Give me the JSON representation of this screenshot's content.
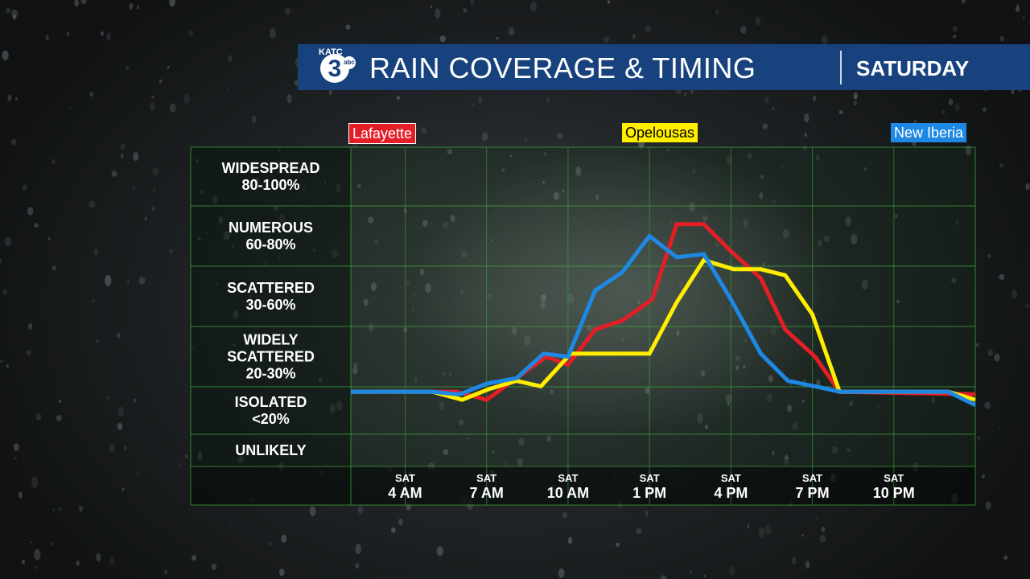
{
  "banner": {
    "logo_text": "KATC",
    "logo_number": "3",
    "logo_network": "abc",
    "title": "RAIN COVERAGE & TIMING",
    "day": "SATURDAY"
  },
  "locations": [
    "Lafayette",
    "Opelousas",
    "New Iberia"
  ],
  "colors": {
    "Lafayette": "#e41e26",
    "Opelousas": "#ffee00",
    "New Iberia": "#1e88e5",
    "banner": "#17427e",
    "grid": "#3fae3f"
  },
  "chart_data": {
    "type": "line",
    "categories": [
      {
        "label": "WIDESPREAD",
        "range": "80-100%"
      },
      {
        "label": "NUMEROUS",
        "range": "60-80%"
      },
      {
        "label": "SCATTERED",
        "range": "30-60%"
      },
      {
        "label": "WIDELY SCATTERED",
        "range": "20-30%"
      },
      {
        "label": "ISOLATED",
        "range": "<20%"
      },
      {
        "label": "UNLIKELY",
        "range": ""
      }
    ],
    "y_levels": [
      "Unlikely",
      "Isolated",
      "Widely Scattered",
      "Scattered",
      "Numerous",
      "Widespread"
    ],
    "y_range": [
      0,
      6
    ],
    "x_ticks": [
      {
        "day": "SAT",
        "time": "4 AM",
        "hour": 4
      },
      {
        "day": "SAT",
        "time": "7 AM",
        "hour": 7
      },
      {
        "day": "SAT",
        "time": "10 AM",
        "hour": 10
      },
      {
        "day": "SAT",
        "time": "1 PM",
        "hour": 13
      },
      {
        "day": "SAT",
        "time": "4 PM",
        "hour": 16
      },
      {
        "day": "SAT",
        "time": "7 PM",
        "hour": 19
      },
      {
        "day": "SAT",
        "time": "10 PM",
        "hour": 22
      }
    ],
    "x_range": [
      2,
      25
    ],
    "grid": true,
    "legend": "top",
    "series": [
      {
        "name": "Lafayette",
        "color": "#e41e26",
        "points": [
          [
            2,
            1.35
          ],
          [
            5,
            1.35
          ],
          [
            5.9,
            1.35
          ],
          [
            7,
            1.2
          ],
          [
            8.1,
            1.6
          ],
          [
            9.2,
            2.0
          ],
          [
            10,
            1.85
          ],
          [
            11,
            2.45
          ],
          [
            12,
            2.6
          ],
          [
            13.1,
            2.95
          ],
          [
            14,
            4.2
          ],
          [
            15,
            4.2
          ],
          [
            16,
            3.75
          ],
          [
            17.1,
            3.3
          ],
          [
            18,
            2.45
          ],
          [
            19.1,
            2.0
          ],
          [
            20,
            1.35
          ],
          [
            25,
            1.3
          ]
        ]
      },
      {
        "name": "Opelousas",
        "color": "#ffee00",
        "points": [
          [
            2,
            1.35
          ],
          [
            5,
            1.35
          ],
          [
            6.1,
            1.2
          ],
          [
            7.1,
            1.4
          ],
          [
            8.1,
            1.55
          ],
          [
            9,
            1.45
          ],
          [
            10.1,
            2.05
          ],
          [
            11.1,
            2.05
          ],
          [
            13,
            2.05
          ],
          [
            14,
            2.9
          ],
          [
            15,
            3.6
          ],
          [
            16.1,
            3.45
          ],
          [
            17.1,
            3.45
          ],
          [
            18,
            3.35
          ],
          [
            19,
            2.7
          ],
          [
            20,
            1.35
          ],
          [
            24,
            1.35
          ],
          [
            25,
            1.2
          ]
        ]
      },
      {
        "name": "New Iberia",
        "color": "#1e88e5",
        "points": [
          [
            2,
            1.35
          ],
          [
            5,
            1.35
          ],
          [
            6,
            1.3
          ],
          [
            7,
            1.5
          ],
          [
            8.1,
            1.6
          ],
          [
            9.1,
            2.05
          ],
          [
            10,
            2.0
          ],
          [
            11,
            3.1
          ],
          [
            12,
            3.4
          ],
          [
            13,
            4.0
          ],
          [
            14,
            3.65
          ],
          [
            15,
            3.7
          ],
          [
            16,
            2.95
          ],
          [
            17.1,
            2.05
          ],
          [
            18.1,
            1.55
          ],
          [
            19.1,
            1.45
          ],
          [
            20,
            1.35
          ],
          [
            24,
            1.35
          ],
          [
            25,
            1.1
          ]
        ]
      }
    ]
  }
}
